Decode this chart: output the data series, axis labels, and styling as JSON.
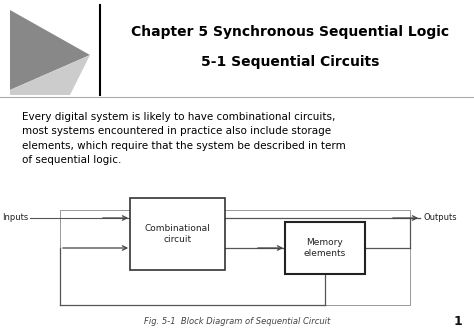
{
  "title_line1": "Chapter 5 Synchronous Sequential Logic",
  "title_line2": "5-1 Sequential Circuits",
  "body_text": "Every digital system is likely to have combinational circuits,\nmost systems encountered in practice also include storage\nelements, which require that the system be described in term\nof sequential logic.",
  "caption": "Fig. 5-1  Block Diagram of Sequential Circuit",
  "page_number": "1",
  "bg_color": "#ffffff",
  "title_color": "#000000",
  "body_color": "#000000",
  "decor_dark": "#888888",
  "decor_light": "#cccccc",
  "diagram": {
    "inputs_label": "Inputs",
    "outputs_label": "Outputs",
    "comb_label": "Combinational\ncircuit",
    "mem_label": "Memory\nelements"
  }
}
